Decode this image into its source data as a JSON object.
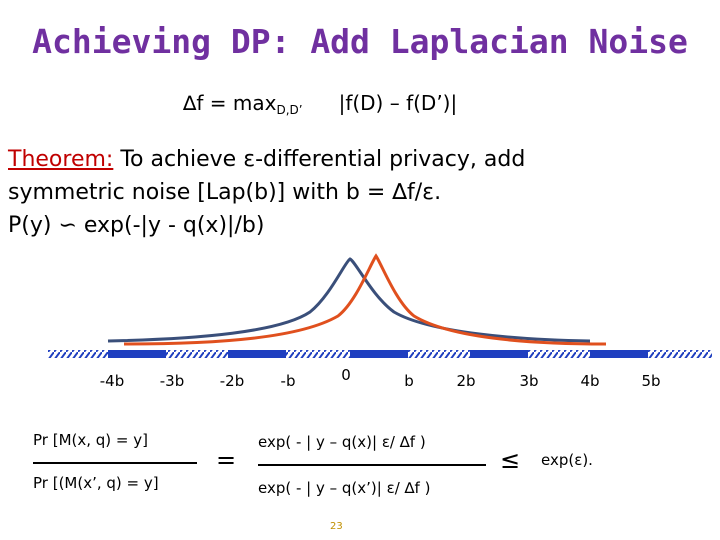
{
  "slide": {
    "title": "Achieving DP: Add Laplacian Noise",
    "sensitivity": {
      "lhs": "∆f = max",
      "sub": "D,D’",
      "rhs": "|f(D) – f(D’)|"
    },
    "theorem": {
      "label": "Theorem:",
      "line1": " To achieve ε-differential privacy, add",
      "line2": "symmetric noise [Lap(b)] with b = ∆f/ε.",
      "line3": "P(y) ∽ exp(-|y - q(x)|/b)"
    },
    "ticks": [
      "-4b",
      "-3b",
      "-2b",
      "-b",
      "0",
      "b",
      "2b",
      "3b",
      "4b",
      "5b"
    ],
    "ratio": {
      "num_left": "Pr [M(x, q) = y]",
      "den_left": "Pr [(M(x’, q) = y]",
      "equals": "=",
      "num_right": "exp( - | y – q(x)| ε/ ∆f )",
      "den_right": "exp( - | y – q(x’)| ε/ ∆f )",
      "leq": "≤",
      "bound": "exp(ε)."
    },
    "page_number": "23",
    "colors": {
      "title": "#7030a0",
      "theorem_label": "#c00000",
      "curve_blue": "#3a4f7a",
      "curve_red": "#e0501e",
      "axis_blue": "#1f3fc0"
    }
  }
}
